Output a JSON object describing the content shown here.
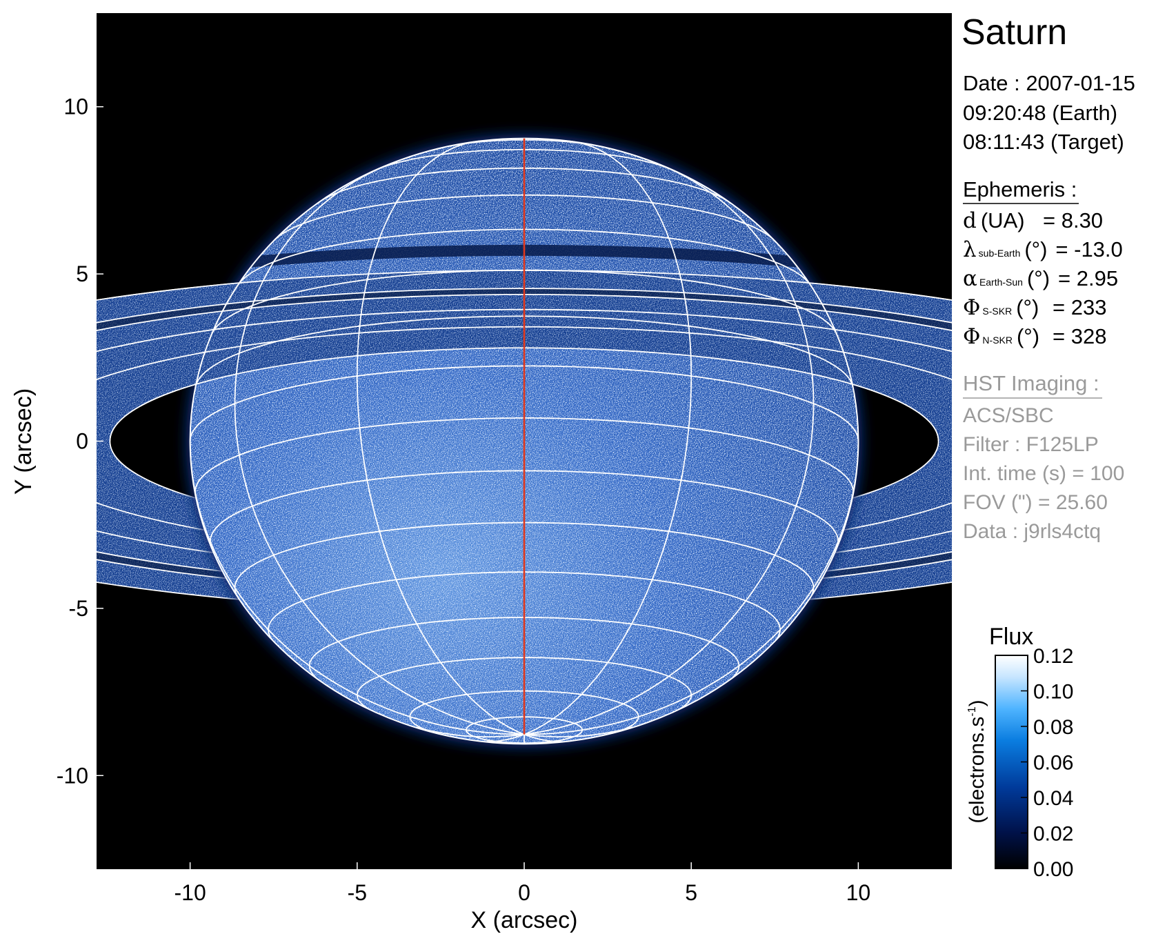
{
  "chart_data": {
    "type": "heatmap",
    "title": "Saturn",
    "xlabel": "X (arcsec)",
    "ylabel": "Y (arcsec)",
    "xlim": [
      -12.8,
      12.8
    ],
    "ylim": [
      -12.8,
      12.8
    ],
    "xticks": [
      "-10",
      "-5",
      "0",
      "5",
      "10"
    ],
    "yticks": [
      "-10",
      "-5",
      "0",
      "5",
      "10"
    ],
    "xtick_values": [
      -10,
      -5,
      0,
      5,
      10
    ],
    "ytick_values": [
      -10,
      -5,
      0,
      5,
      10
    ],
    "grid": "planetographic latitude/longitude grid overlay",
    "colorbar": {
      "title": "Flux",
      "label": "(electrons.s",
      "label_sup": "-1",
      "label_end": ")",
      "range": [
        0.0,
        0.12
      ],
      "ticks": [
        "0.00",
        "0.02",
        "0.04",
        "0.06",
        "0.08",
        "0.10",
        "0.12"
      ],
      "tick_values": [
        0.0,
        0.02,
        0.04,
        0.06,
        0.07999,
        0.1,
        0.12
      ],
      "colors": [
        "#000000",
        "#00124a",
        "#003a9a",
        "#0a7de0",
        "#4fb4ff",
        "#c8e6ff",
        "#ffffff"
      ]
    }
  },
  "info": {
    "target": "Saturn",
    "date_line": "Date : 2007-01-15",
    "earth_time": "09:20:48 (Earth)",
    "target_time": "08:11:43 (Target)",
    "ephemeris_title": "Ephemeris :",
    "ephemeris": [
      {
        "symbol": "d",
        "sub": "",
        "unit": "(UA)",
        "value": "= 8.30"
      },
      {
        "symbol": "λ",
        "sub": "sub-Earth",
        "unit": "(°)",
        "value": "= -13.0"
      },
      {
        "symbol": "α",
        "sub": "Earth-Sun",
        "unit": "(°)",
        "value": "= 2.95"
      },
      {
        "symbol": "Φ",
        "sub": "S-SKR",
        "unit": "(°)",
        "value": "= 233"
      },
      {
        "symbol": "Φ",
        "sub": "N-SKR",
        "unit": "(°)",
        "value": "= 328"
      }
    ],
    "imaging_title": "HST Imaging :",
    "imaging": [
      "ACS/SBC",
      "Filter : F125LP",
      "Int. time (s) = 100",
      "FOV (\") = 25.60",
      "Data : j9rls4ctq"
    ]
  },
  "colors": {
    "grid": "#ffffff",
    "central_meridian": "#e0381c",
    "info_secondary": "#9a9a9a"
  }
}
